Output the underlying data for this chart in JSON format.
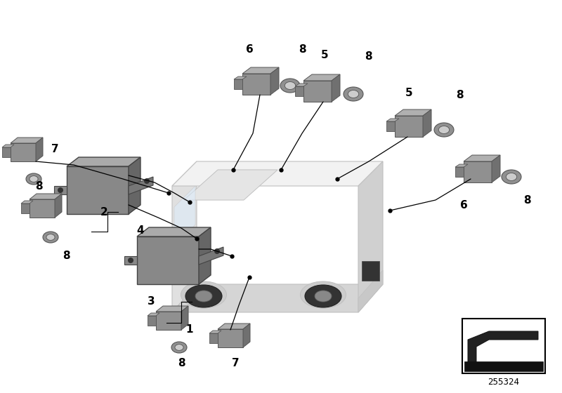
{
  "bg_color": "#ffffff",
  "fig_width": 8.0,
  "fig_height": 5.6,
  "dpi": 100,
  "part_number": "255324",
  "sensor_face": "#909090",
  "sensor_top": "#b0b0b0",
  "sensor_side": "#707070",
  "sensor_conn": "#808080",
  "bracket_face": "#888888",
  "bracket_top": "#aaaaaa",
  "bracket_side": "#666666",
  "ring_outer": "#909090",
  "ring_inner": "#c0c0c0",
  "car_body": "#e8e8e8",
  "car_roof": "#f0f0f0",
  "car_side": "#d8d8d8",
  "car_outline": "#c0c0c0",
  "line_color": "#000000",
  "label_color": "#000000",
  "label_fs": 11
}
